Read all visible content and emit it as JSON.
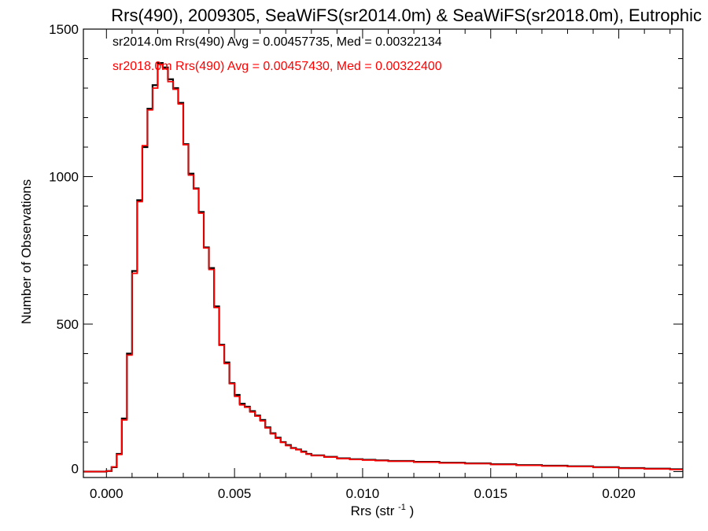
{
  "chart_data": {
    "type": "line",
    "step": true,
    "title": "Rrs(490), 2009305, SeaWiFS(sr2014.0m) & SeaWiFS(sr2018.0m), Eutrophic",
    "xlabel": "Rrs (str",
    "xlabel_sup": "-1",
    "xlabel_end": ")",
    "ylabel": "Number of Observations",
    "xlim": [
      -0.0009,
      0.0225
    ],
    "ylim": [
      -20,
      1500
    ],
    "xticks": [
      0.0,
      0.005,
      0.01,
      0.015,
      0.02
    ],
    "xtick_labels": [
      "0.000",
      "0.005",
      "0.010",
      "0.015",
      "0.020"
    ],
    "yticks": [
      0,
      500,
      1000,
      1500
    ],
    "ytick_labels": [
      "0",
      "500",
      "1000",
      "1500"
    ],
    "grid": false,
    "legend_position": "top-left",
    "colors": {
      "sr2014": "#000000",
      "sr2018": "#ff0000"
    },
    "x": [
      -0.0009,
      0.0,
      0.0002,
      0.0004,
      0.0006,
      0.0008,
      0.001,
      0.0012,
      0.0014,
      0.0016,
      0.0018,
      0.002,
      0.0022,
      0.0024,
      0.0026,
      0.0028,
      0.003,
      0.0032,
      0.0034,
      0.0036,
      0.0038,
      0.004,
      0.0042,
      0.0044,
      0.0046,
      0.0048,
      0.005,
      0.0052,
      0.0054,
      0.0056,
      0.0058,
      0.006,
      0.0062,
      0.0064,
      0.0066,
      0.0068,
      0.007,
      0.0072,
      0.0074,
      0.0076,
      0.0078,
      0.008,
      0.0085,
      0.009,
      0.0095,
      0.01,
      0.0105,
      0.011,
      0.012,
      0.013,
      0.014,
      0.015,
      0.016,
      0.017,
      0.018,
      0.019,
      0.02,
      0.021,
      0.022,
      0.0225
    ],
    "series": [
      {
        "label": "sr2014.0m Rrs(490) Avg = 0.00457735, Med = 0.00322134",
        "color": "#000000",
        "values": [
          0,
          2,
          15,
          60,
          180,
          400,
          680,
          920,
          1100,
          1230,
          1310,
          1385,
          1370,
          1330,
          1300,
          1250,
          1110,
          1010,
          960,
          880,
          760,
          690,
          560,
          430,
          370,
          300,
          260,
          230,
          220,
          205,
          190,
          175,
          150,
          130,
          115,
          100,
          90,
          80,
          75,
          68,
          60,
          55,
          50,
          45,
          42,
          40,
          38,
          36,
          33,
          30,
          28,
          25,
          22,
          20,
          18,
          15,
          12,
          10,
          8,
          8
        ]
      },
      {
        "label": "sr2018.0m Rrs(490) Avg = 0.00457430, Med = 0.00322400",
        "color": "#ff0000",
        "values": [
          0,
          2,
          16,
          58,
          175,
          395,
          672,
          915,
          1105,
          1226,
          1300,
          1380,
          1365,
          1322,
          1296,
          1246,
          1108,
          1005,
          958,
          876,
          758,
          685,
          556,
          428,
          366,
          298,
          255,
          226,
          218,
          202,
          188,
          172,
          148,
          128,
          113,
          99,
          88,
          79,
          74,
          66,
          59,
          54,
          49,
          44,
          41,
          39,
          37,
          35,
          32,
          29,
          27,
          24,
          21,
          19,
          17,
          14,
          11,
          9,
          7,
          7
        ]
      }
    ]
  }
}
